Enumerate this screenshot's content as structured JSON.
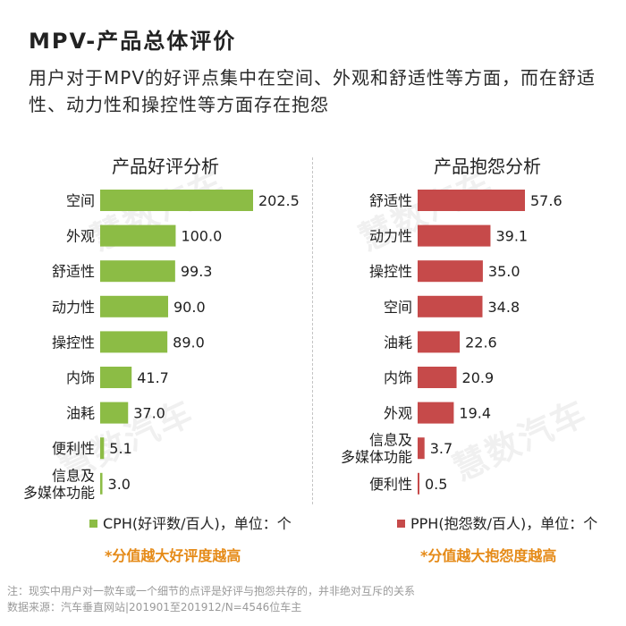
{
  "title": "MPV-产品总体评价",
  "subtitle": "用户对于MPV的好评点集中在空间、外观和舒适性等方面，而在舒适性、动力性和操控性等方面存在抱怨",
  "watermark": "慧数汽车",
  "colors": {
    "positive": "#8cbc45",
    "negative": "#c64a4a",
    "note": "#e58a17"
  },
  "chart_data": [
    {
      "type": "bar",
      "orientation": "horizontal",
      "title": "产品好评分析",
      "categories": [
        "空间",
        "外观",
        "舒适性",
        "动力性",
        "操控性",
        "内饰",
        "油耗",
        "便利性",
        "信息及\n多媒体功能"
      ],
      "values": [
        202.5,
        100.0,
        99.3,
        90.0,
        89.0,
        41.7,
        37.0,
        5.1,
        3.0
      ],
      "value_labels": [
        "202.5",
        "100.0",
        "99.3",
        "90.0",
        "89.0",
        "41.7",
        "37.0",
        "5.1",
        "3.0"
      ],
      "legend": "CPH(好评数/百人)，单位：个",
      "note": "*分值越大好评度越高",
      "xlim": [
        0,
        202.5
      ],
      "grid": false,
      "legend_position": "bottom"
    },
    {
      "type": "bar",
      "orientation": "horizontal",
      "title": "产品抱怨分析",
      "categories": [
        "舒适性",
        "动力性",
        "操控性",
        "空间",
        "油耗",
        "内饰",
        "外观",
        "信息及\n多媒体功能",
        "便利性"
      ],
      "values": [
        57.6,
        39.1,
        35.0,
        34.8,
        22.6,
        20.9,
        19.4,
        3.7,
        0.5
      ],
      "value_labels": [
        "57.6",
        "39.1",
        "35.0",
        "34.8",
        "22.6",
        "20.9",
        "19.4",
        "3.7",
        "0.5"
      ],
      "legend": "PPH(抱怨数/百人)，单位：个",
      "note": "*分值越大抱怨度越高",
      "xlim": [
        0,
        57.6
      ],
      "grid": false,
      "legend_position": "bottom"
    }
  ],
  "footnote": "注：现实中用户对一款车或一个细节的点评是好评与抱怨共存的，并非绝对互斥的关系",
  "source": "数据来源：汽车垂直网站|201901至201912/N=4546位车主"
}
